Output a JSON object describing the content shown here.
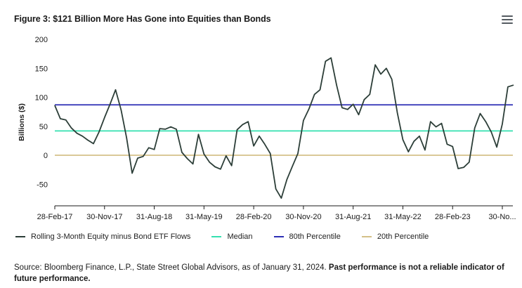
{
  "title": "Figure 3: $121 Billion More Has Gone into Equities than Bonds",
  "menu_icon": "hamburger-menu-icon",
  "source_text": "Source: Bloomberg Finance, L.P., State Street Global Advisors, as of January 31, 2024. ",
  "source_bold": "Past performance is not a reliable indicator of future performance.",
  "colors": {
    "series": "#2c3e38",
    "median": "#35e0b0",
    "p80": "#2d2fb5",
    "p20": "#d4c088",
    "axis": "#1a1a1a"
  },
  "chart_data": {
    "type": "line",
    "title": "Figure 3: $121 Billion More Has Gone into Equities than Bonds",
    "ylabel": "Billions ($)",
    "xlabel": "",
    "ylim": [
      -80,
      200
    ],
    "yticks": [
      200,
      150,
      100,
      50,
      0,
      -50
    ],
    "xtick_labels": [
      "28-Feb-17",
      "30-Nov-17",
      "31-Aug-18",
      "31-May-19",
      "28-Feb-20",
      "30-Nov-20",
      "31-Aug-21",
      "31-May-22",
      "28-Feb-23",
      "30-No..."
    ],
    "legend": [
      "Rolling 3-Month Equity minus Bond ETF Flows",
      "Median",
      "80th Percentile",
      "20th Percentile"
    ],
    "legend_position": "bottom",
    "grid": false,
    "series": [
      {
        "name": "Rolling 3-Month Equity minus Bond ETF Flows",
        "x": [
          "Feb-17",
          "Mar-17",
          "Apr-17",
          "May-17",
          "Jun-17",
          "Jul-17",
          "Aug-17",
          "Sep-17",
          "Oct-17",
          "Nov-17",
          "Dec-17",
          "Jan-18",
          "Feb-18",
          "Mar-18",
          "Apr-18",
          "May-18",
          "Jun-18",
          "Jul-18",
          "Aug-18",
          "Sep-18",
          "Oct-18",
          "Nov-18",
          "Dec-18",
          "Jan-19",
          "Feb-19",
          "Mar-19",
          "Apr-19",
          "May-19",
          "Jun-19",
          "Jul-19",
          "Aug-19",
          "Sep-19",
          "Oct-19",
          "Nov-19",
          "Dec-19",
          "Jan-20",
          "Feb-20",
          "Mar-20",
          "Apr-20",
          "May-20",
          "Jun-20",
          "Jul-20",
          "Aug-20",
          "Sep-20",
          "Oct-20",
          "Nov-20",
          "Dec-20",
          "Jan-21",
          "Feb-21",
          "Mar-21",
          "Apr-21",
          "May-21",
          "Jun-21",
          "Jul-21",
          "Aug-21",
          "Sep-21",
          "Oct-21",
          "Nov-21",
          "Dec-21",
          "Jan-22",
          "Feb-22",
          "Mar-22",
          "Apr-22",
          "May-22",
          "Jun-22",
          "Jul-22",
          "Aug-22",
          "Sep-22",
          "Oct-22",
          "Nov-22",
          "Dec-22",
          "Jan-23",
          "Feb-23",
          "Mar-23",
          "Apr-23",
          "May-23",
          "Jun-23",
          "Jul-23",
          "Aug-23",
          "Sep-23",
          "Oct-23",
          "Nov-23",
          "Dec-23",
          "Jan-24"
        ],
        "values": [
          86,
          63,
          61,
          47,
          38,
          33,
          26,
          20,
          40,
          65,
          88,
          113,
          78,
          30,
          -31,
          -5,
          -2,
          13,
          10,
          46,
          45,
          49,
          45,
          5,
          -6,
          -15,
          36,
          2,
          -12,
          -20,
          -24,
          -1,
          -18,
          44,
          53,
          58,
          16,
          33,
          19,
          3,
          -58,
          -74,
          -42,
          -19,
          3,
          60,
          80,
          105,
          113,
          162,
          168,
          121,
          82,
          79,
          88,
          70,
          96,
          105,
          156,
          140,
          150,
          131,
          73,
          27,
          6,
          24,
          33,
          9,
          58,
          49,
          55,
          19,
          15,
          -23,
          -21,
          -12,
          47,
          72,
          58,
          40,
          14,
          54,
          118,
          121
        ]
      }
    ],
    "reference_lines": [
      {
        "name": "Median",
        "value": 42
      },
      {
        "name": "80th Percentile",
        "value": 87
      },
      {
        "name": "20th Percentile",
        "value": 0
      }
    ]
  }
}
